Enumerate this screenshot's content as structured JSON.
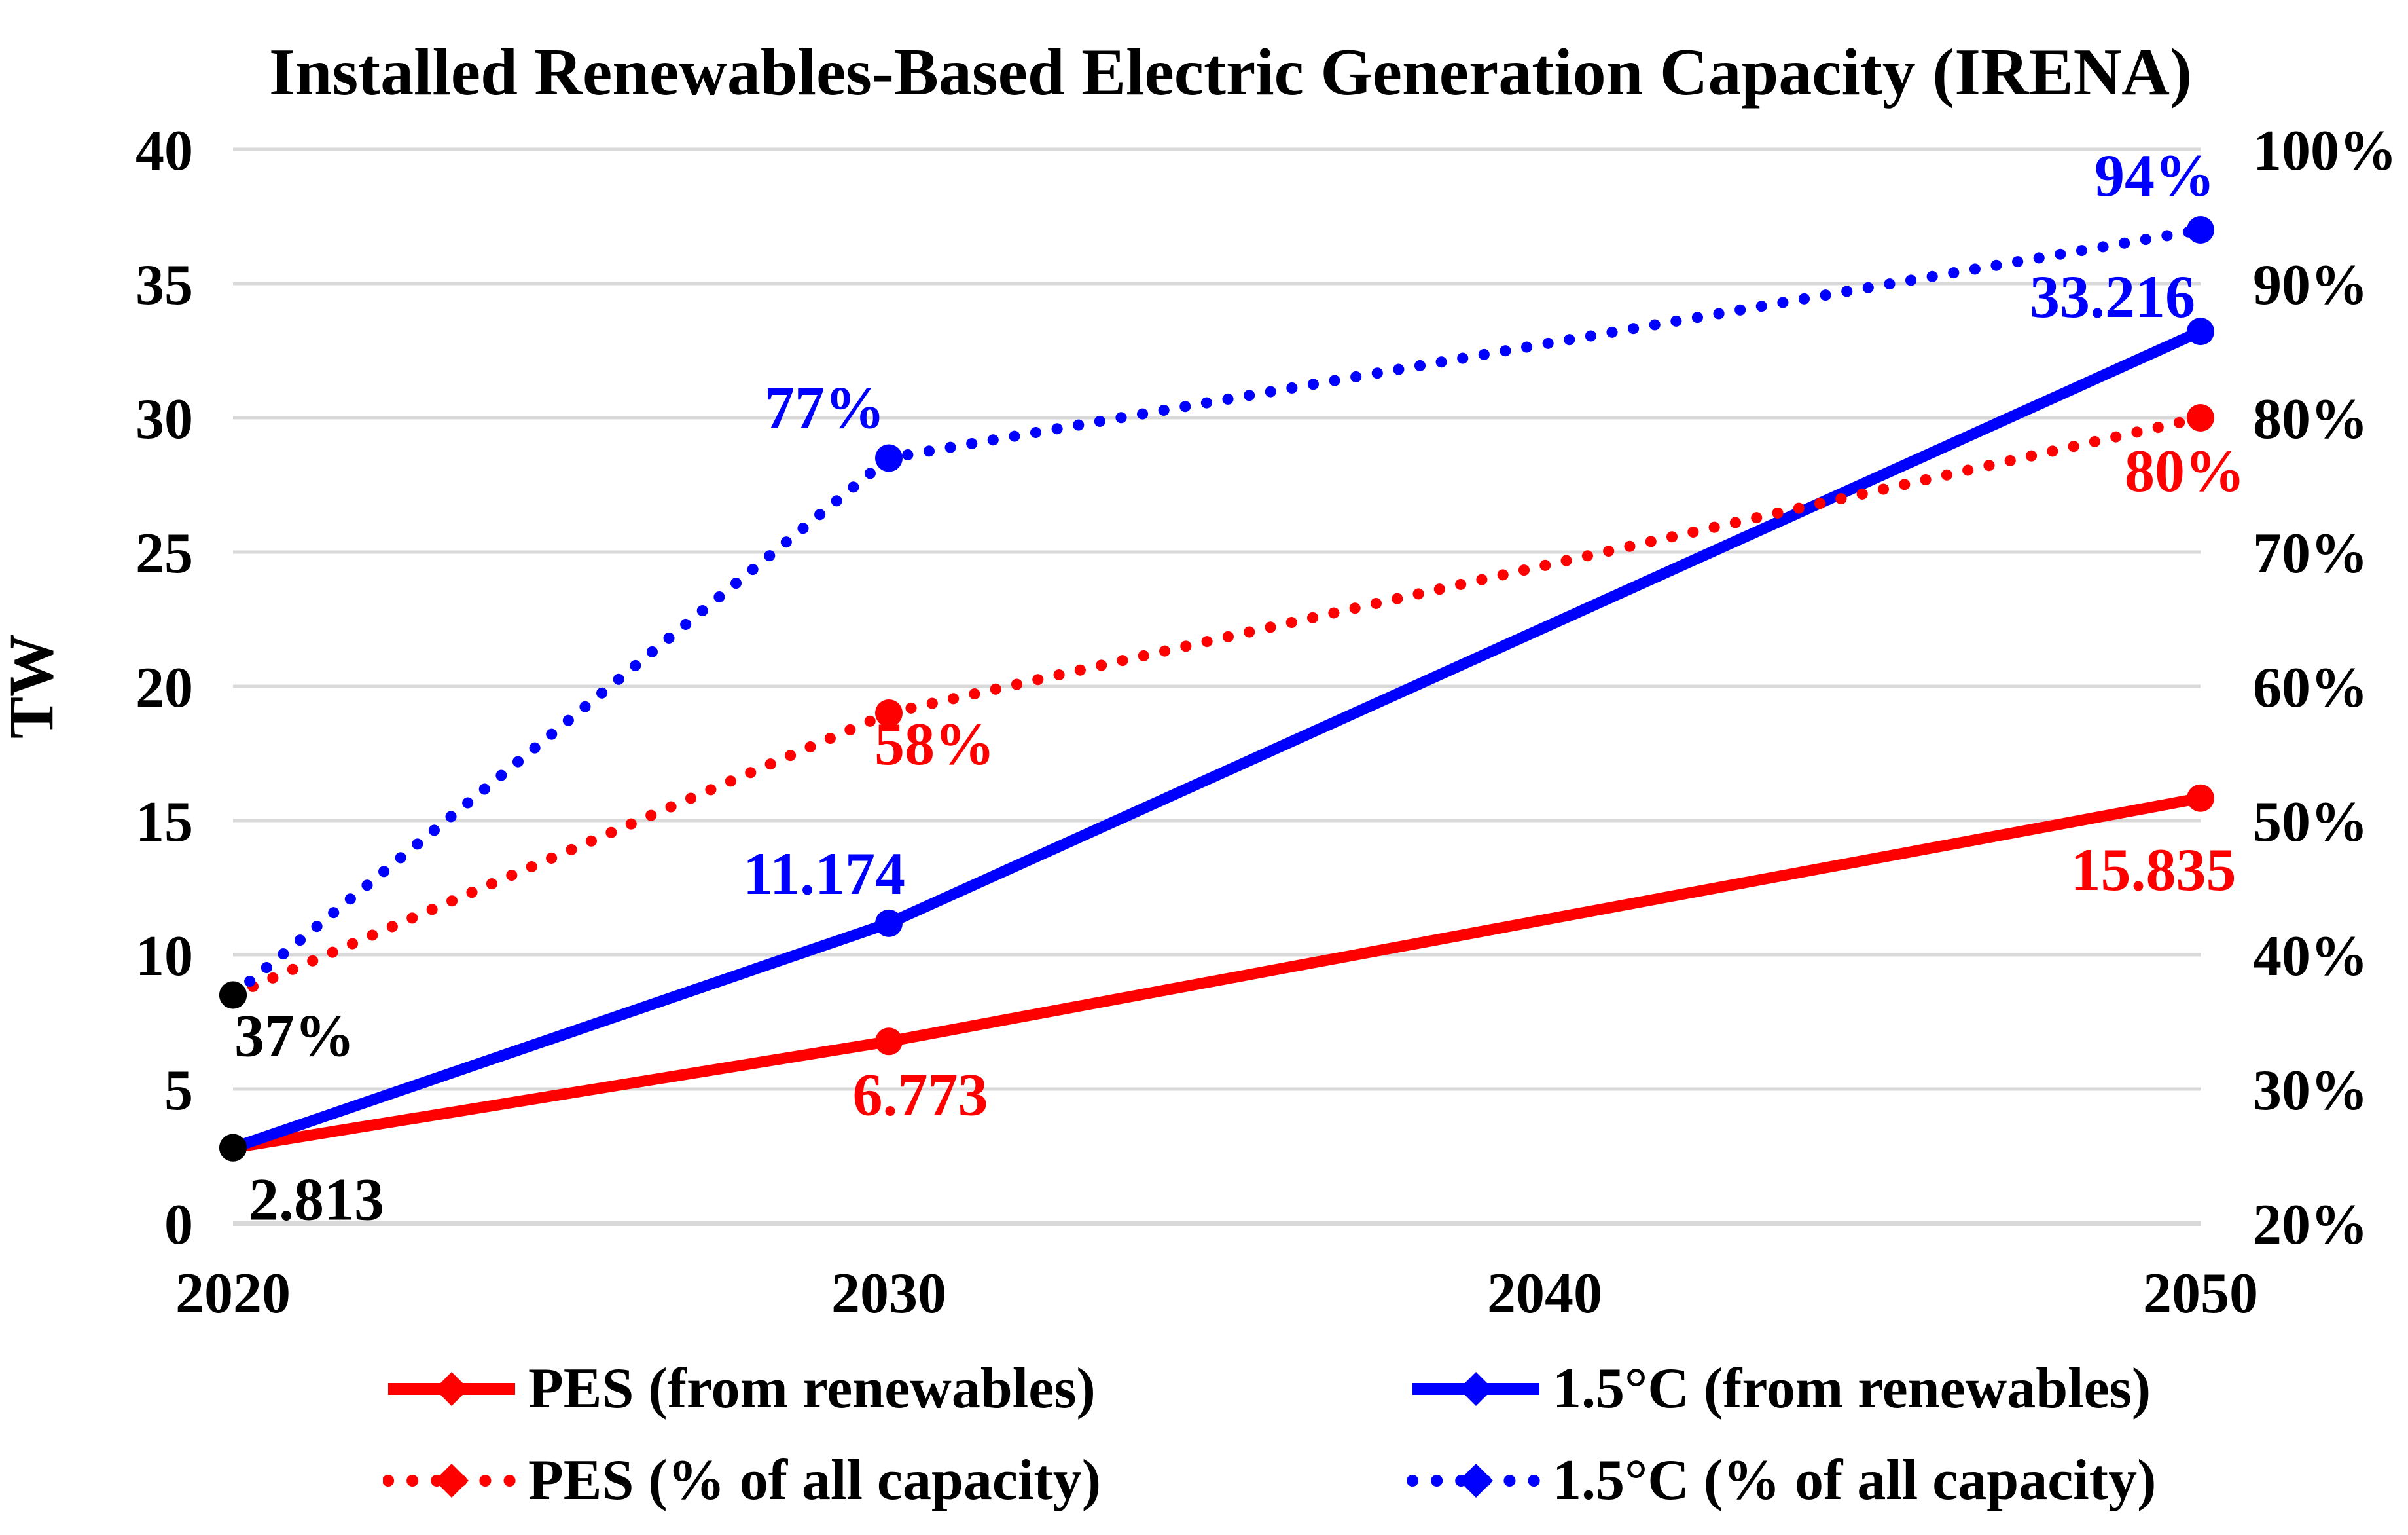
{
  "colors": {
    "red": "#ff0000",
    "blue": "#0000ff",
    "black": "#000000",
    "gridline": "#d9d9d9",
    "background": "#ffffff"
  },
  "chart_data": {
    "type": "line",
    "title": "Installed Renewables-Based Electric Generation Capacity (IRENA)",
    "grid": "horizontal",
    "legend_position": "bottom",
    "x_tick_labels": [
      "2020",
      "2030",
      "2040",
      "2050"
    ],
    "x_tick_values": [
      2020,
      2030,
      2040,
      2050
    ],
    "y_left_axis": {
      "label": "TW",
      "min": 0,
      "max": 40,
      "step": 5,
      "tick_labels": [
        "0",
        "5",
        "10",
        "15",
        "20",
        "25",
        "30",
        "35",
        "40"
      ]
    },
    "y_right_axis": {
      "label": "",
      "min": 20,
      "max": 100,
      "step": 10,
      "tick_labels": [
        "20%",
        "30%",
        "40%",
        "50%",
        "60%",
        "70%",
        "80%",
        "90%",
        "100%"
      ]
    },
    "series": [
      {
        "key": "pes_tw",
        "name": "PES (from renewables)",
        "axis": "left",
        "style": "solid",
        "color": "#ff0000",
        "x": [
          2020,
          2030,
          2050
        ],
        "values": [
          2.813,
          6.773,
          15.835
        ],
        "marker_colors": [
          "#000000",
          "#ff0000",
          "#ff0000"
        ],
        "point_labels": [
          {
            "text": "2.813",
            "color": "#000000"
          },
          {
            "text": "6.773",
            "color": "#ff0000"
          },
          {
            "text": "15.835",
            "color": "#ff0000"
          }
        ]
      },
      {
        "key": "c15_tw",
        "name": "1.5°C (from renewables)",
        "axis": "left",
        "style": "solid",
        "color": "#0000ff",
        "x": [
          2020,
          2030,
          2050
        ],
        "values": [
          2.813,
          11.174,
          33.216
        ],
        "marker_colors": [
          "#000000",
          "#0000ff",
          "#0000ff"
        ],
        "point_labels": [
          null,
          {
            "text": "11.174",
            "color": "#0000ff"
          },
          {
            "text": "33.216",
            "color": "#0000ff"
          }
        ]
      },
      {
        "key": "pes_pct",
        "name": "PES (% of all capacity)",
        "axis": "right",
        "style": "dotted",
        "color": "#ff0000",
        "x": [
          2020,
          2030,
          2050
        ],
        "values": [
          37,
          58,
          80
        ],
        "marker_colors": [
          "#000000",
          "#ff0000",
          "#ff0000"
        ],
        "point_labels": [
          {
            "text": "37%",
            "color": "#000000"
          },
          {
            "text": "58%",
            "color": "#ff0000"
          },
          {
            "text": "80%",
            "color": "#ff0000"
          }
        ]
      },
      {
        "key": "c15_pct",
        "name": "1.5°C (% of all capacity)",
        "axis": "right",
        "style": "dotted",
        "color": "#0000ff",
        "x": [
          2020,
          2030,
          2050
        ],
        "values": [
          37,
          77,
          94
        ],
        "marker_colors": [
          "#000000",
          "#0000ff",
          "#0000ff"
        ],
        "point_labels": [
          null,
          {
            "text": "77%",
            "color": "#0000ff"
          },
          {
            "text": "94%",
            "color": "#0000ff"
          }
        ]
      }
    ]
  }
}
